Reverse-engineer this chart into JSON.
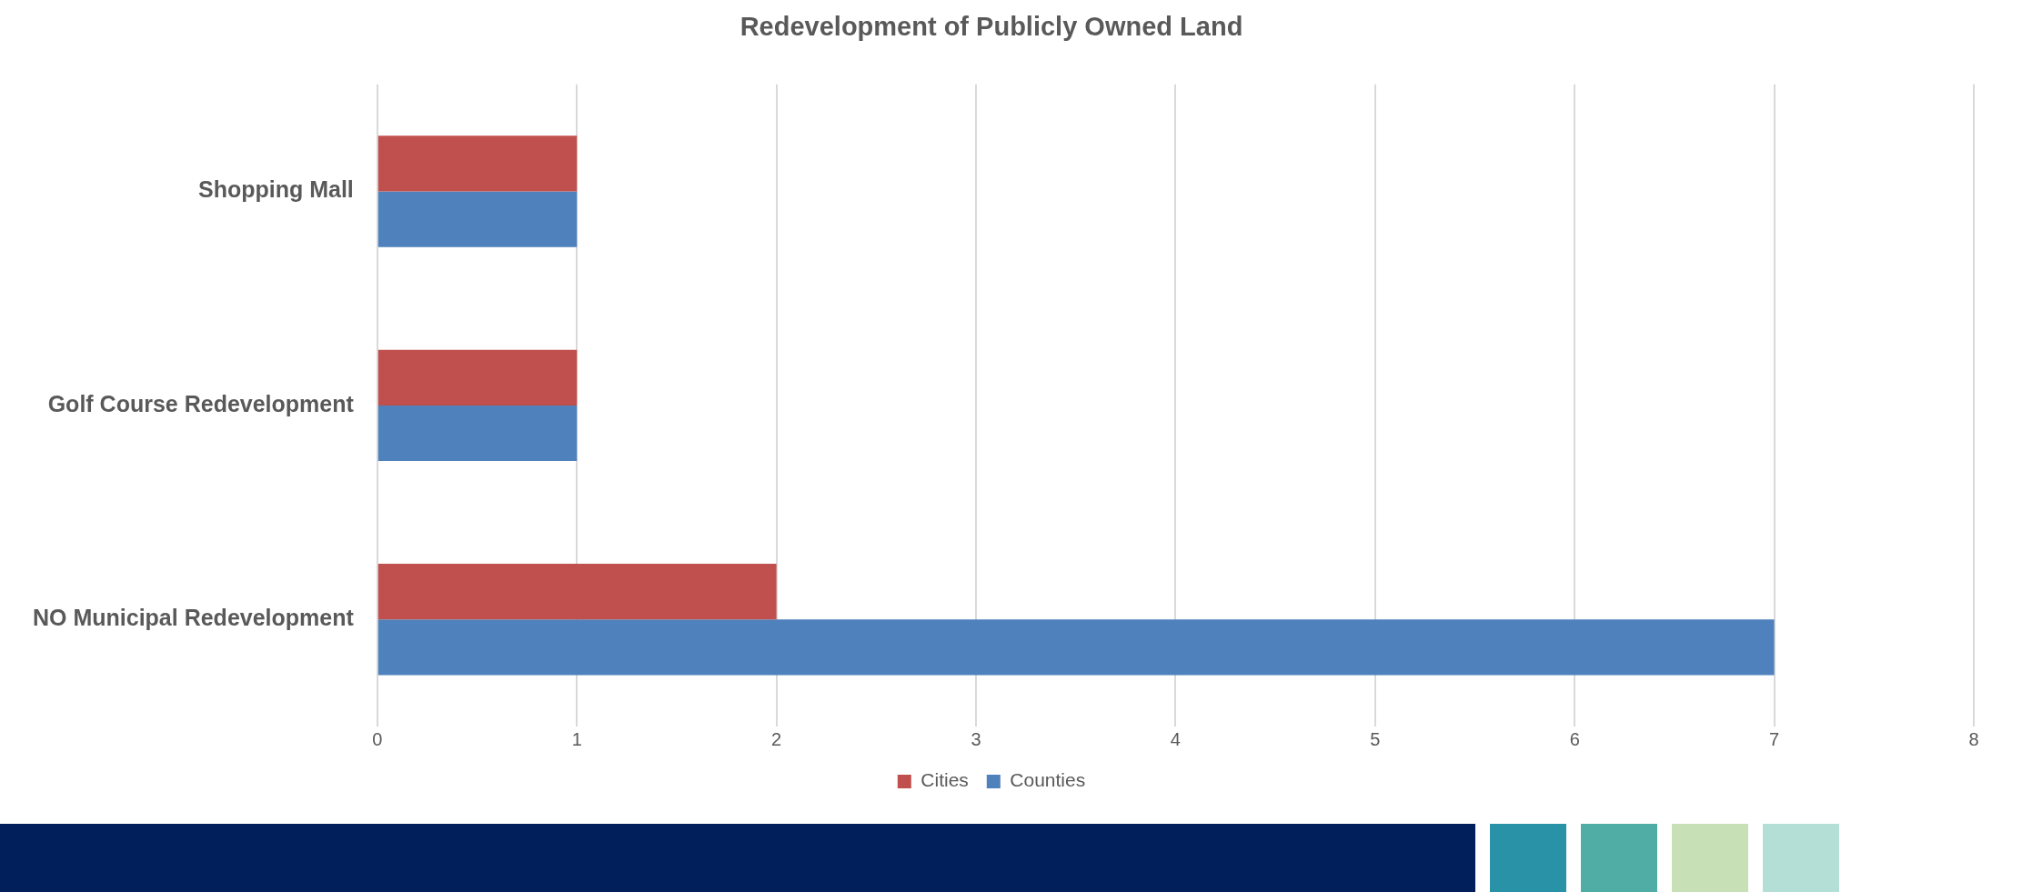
{
  "chart_data": {
    "type": "bar",
    "orientation": "horizontal",
    "title": "Redevelopment of Publicly Owned Land",
    "categories": [
      "Shopping Mall",
      "Golf Course Redevelopment",
      "NO Municipal Redevelopment"
    ],
    "series": [
      {
        "name": "Cities",
        "color": "#c0504d",
        "values": [
          1,
          1,
          2
        ]
      },
      {
        "name": "Counties",
        "color": "#4f81bd",
        "values": [
          1,
          1,
          7
        ]
      }
    ],
    "xlim": [
      0,
      8
    ],
    "xticks": [
      0,
      1,
      2,
      3,
      4,
      5,
      6,
      7,
      8
    ],
    "grid": "x",
    "legend": "bottom"
  }
}
